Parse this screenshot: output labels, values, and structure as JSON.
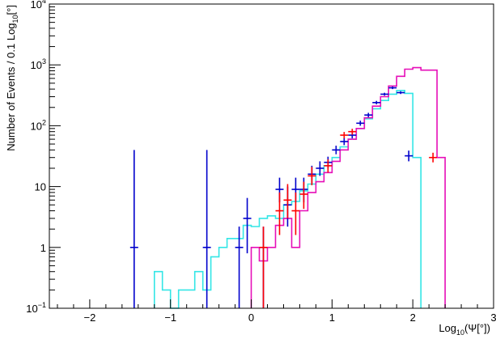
{
  "chart_data": {
    "type": "histogram",
    "xlabel": "Log10(Ψ[°])",
    "xlabel_parts": {
      "pre": "Log",
      "sub": "10",
      "post": "(Ψ[°])"
    },
    "ylabel": "Number of Events / 0.1 Log10[°]",
    "ylabel_parts": {
      "pre": "Number of Events / 0.1 Log",
      "sub": "10",
      "post": "[°]"
    },
    "xlim": [
      -2.5,
      3
    ],
    "ylim": [
      0.1,
      10000
    ],
    "yscale": "log",
    "grid": false,
    "legend": "none",
    "x_ticks": [
      {
        "value": -2,
        "label": "−2"
      },
      {
        "value": -1,
        "label": "−1"
      },
      {
        "value": 0,
        "label": "0"
      },
      {
        "value": 1,
        "label": "1"
      },
      {
        "value": 2,
        "label": "2"
      },
      {
        "value": 3,
        "label": "3"
      }
    ],
    "y_ticks": [
      {
        "value": 0.1,
        "base": "10",
        "exp": "−1"
      },
      {
        "value": 1,
        "base": "1",
        "exp": ""
      },
      {
        "value": 10,
        "base": "10",
        "exp": ""
      },
      {
        "value": 100,
        "base": "10",
        "exp": "2"
      },
      {
        "value": 1000,
        "base": "10",
        "exp": "3"
      },
      {
        "value": 10000,
        "base": "10",
        "exp": "4"
      }
    ],
    "series": [
      {
        "kind": "step",
        "color": "#33e6e6",
        "bins": [
          [
            -1.2,
            0.4
          ],
          [
            -1.1,
            0.2
          ],
          [
            -1.0,
            0.1
          ],
          [
            -0.9,
            0.2
          ],
          [
            -0.8,
            0.2
          ],
          [
            -0.7,
            0.4
          ],
          [
            -0.6,
            0.2
          ],
          [
            -0.5,
            0.7
          ],
          [
            -0.4,
            1.0
          ],
          [
            -0.3,
            1.4
          ],
          [
            -0.2,
            1.4
          ],
          [
            -0.1,
            2.3
          ],
          [
            0.0,
            2.2
          ],
          [
            0.1,
            3.0
          ],
          [
            0.2,
            3.3
          ],
          [
            0.3,
            3.0
          ],
          [
            0.4,
            5.0
          ],
          [
            0.5,
            5.7
          ],
          [
            0.6,
            8.5
          ],
          [
            0.7,
            11
          ],
          [
            0.8,
            16
          ],
          [
            0.9,
            22
          ],
          [
            1.0,
            30
          ],
          [
            1.1,
            45
          ],
          [
            1.2,
            60
          ],
          [
            1.3,
            90
          ],
          [
            1.4,
            130
          ],
          [
            1.5,
            190
          ],
          [
            1.6,
            260
          ],
          [
            1.7,
            330
          ],
          [
            1.8,
            380
          ],
          [
            1.9,
            340
          ],
          [
            2.0,
            30
          ]
        ],
        "x_end": 2.1
      },
      {
        "kind": "step",
        "color": "#e60fb8",
        "bins": [
          [
            0.0,
            1.0
          ],
          [
            0.1,
            0.6
          ],
          [
            0.2,
            1.0
          ],
          [
            0.3,
            2.3
          ],
          [
            0.4,
            3.0
          ],
          [
            0.5,
            1.0
          ],
          [
            0.6,
            4.0
          ],
          [
            0.7,
            8.0
          ],
          [
            0.8,
            12
          ],
          [
            0.9,
            17
          ],
          [
            1.0,
            26
          ],
          [
            1.1,
            40
          ],
          [
            1.2,
            60
          ],
          [
            1.3,
            90
          ],
          [
            1.4,
            135
          ],
          [
            1.5,
            210
          ],
          [
            1.6,
            300
          ],
          [
            1.7,
            450
          ],
          [
            1.8,
            650
          ],
          [
            1.9,
            850
          ],
          [
            2.0,
            900
          ],
          [
            2.1,
            820
          ],
          [
            2.2,
            820
          ],
          [
            2.3,
            30
          ]
        ],
        "x_end": 2.3
      },
      {
        "kind": "points",
        "color": "#0000cc",
        "points": [
          [
            -1.45,
            1.0,
            0.1,
            40
          ],
          [
            -0.55,
            1.0,
            0.1,
            40
          ],
          [
            -0.15,
            1.0,
            0.1,
            2.2
          ],
          [
            -0.05,
            3.0,
            0.8,
            6.5
          ],
          [
            0.15,
            1.0,
            0.1,
            2.2
          ],
          [
            0.35,
            9.0,
            5.5,
            14
          ],
          [
            0.45,
            5.0,
            2.2,
            10
          ],
          [
            0.55,
            9.0,
            5.5,
            14
          ],
          [
            0.65,
            9.0,
            5.5,
            14
          ],
          [
            0.75,
            16,
            11,
            22
          ],
          [
            0.85,
            20,
            15,
            26
          ],
          [
            0.95,
            25,
            20,
            31
          ],
          [
            1.05,
            40,
            34,
            47
          ],
          [
            1.15,
            55,
            48,
            63
          ],
          [
            1.25,
            70,
            62,
            79
          ],
          [
            1.35,
            110,
            100,
            121
          ],
          [
            1.45,
            150,
            138,
            163
          ],
          [
            1.55,
            240,
            225,
            256
          ],
          [
            1.65,
            330,
            312,
            348
          ],
          [
            1.75,
            420,
            400,
            441
          ],
          [
            1.85,
            350,
            332,
            369
          ],
          [
            1.95,
            32,
            26,
            39
          ]
        ]
      },
      {
        "kind": "points",
        "color": "#ff0000",
        "points": [
          [
            0.15,
            1.0,
            0.1,
            2.2
          ],
          [
            0.35,
            4.0,
            1.6,
            8.0
          ],
          [
            0.45,
            6.0,
            3.0,
            11
          ],
          [
            0.55,
            4.0,
            1.6,
            8.0
          ],
          [
            0.65,
            7.5,
            4.3,
            12
          ],
          [
            0.75,
            15,
            10.5,
            21
          ],
          [
            0.95,
            22,
            17,
            28
          ],
          [
            1.15,
            70,
            62,
            79
          ],
          [
            1.25,
            80,
            71,
            89
          ],
          [
            2.25,
            30,
            25,
            36
          ]
        ]
      }
    ]
  }
}
